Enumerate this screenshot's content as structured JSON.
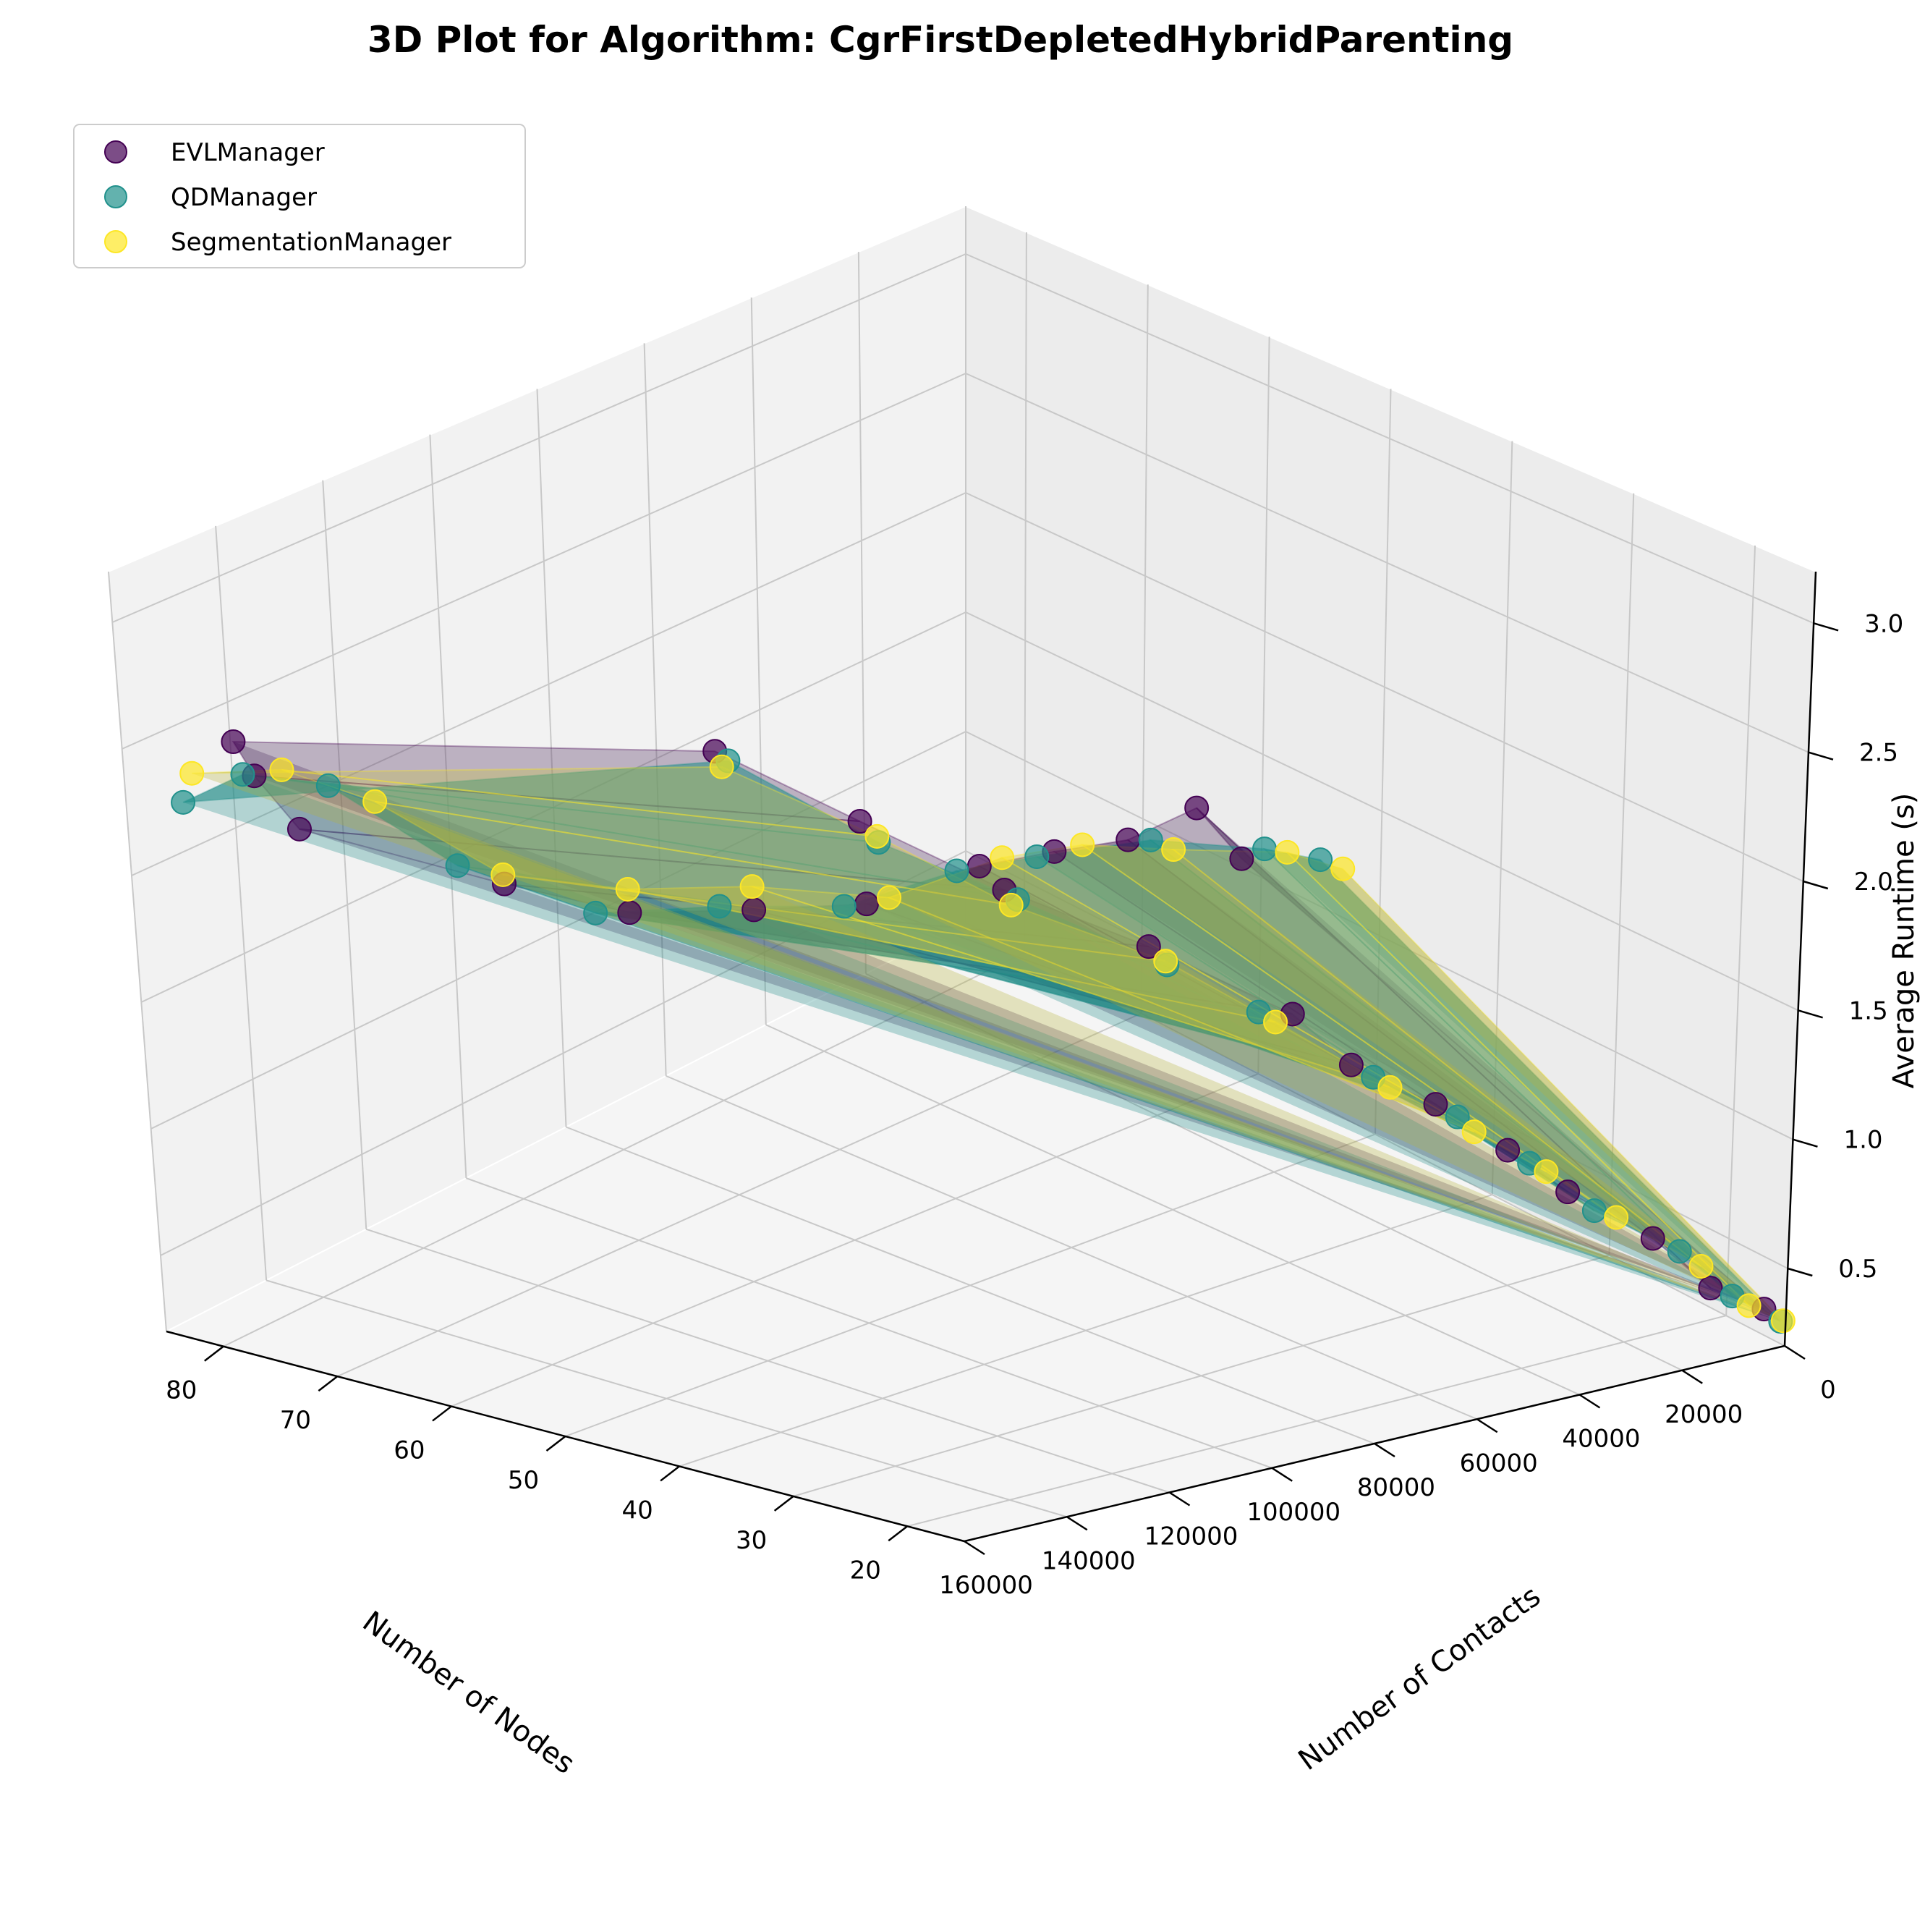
{
  "chart_data": {
    "type": "scatter",
    "title": "3D Plot for Algorithm: CgrFirstDepletedHybridParenting",
    "xlabel": "Number of Nodes",
    "ylabel": "Number of Contacts",
    "zlabel": "Average Runtime (s)",
    "xlim": [
      15,
      85
    ],
    "ylim": [
      0,
      160000
    ],
    "zlim": [
      0.2,
      3.2
    ],
    "x_ticks": [
      "80",
      "70",
      "60",
      "50",
      "40",
      "30",
      "20"
    ],
    "x_tick_values": [
      80,
      70,
      60,
      50,
      40,
      30,
      20
    ],
    "y_ticks": [
      "0",
      "20000",
      "40000",
      "60000",
      "80000",
      "100000",
      "120000",
      "140000",
      "160000"
    ],
    "y_tick_values": [
      0,
      20000,
      40000,
      60000,
      80000,
      100000,
      120000,
      140000,
      160000
    ],
    "z_ticks": [
      "0.5",
      "1.0",
      "1.5",
      "2.0",
      "2.5",
      "3.0"
    ],
    "z_tick_values": [
      0.5,
      1.0,
      1.5,
      2.0,
      2.5,
      3.0
    ],
    "grid": true,
    "legend_position": "top-left",
    "series": [
      {
        "name": "EVLManager",
        "color": "#440154",
        "points": [
          [
            80,
            150000,
            2.6
          ],
          [
            76,
            155000,
            2.65
          ],
          [
            70,
            160000,
            2.7
          ],
          [
            62,
            140000,
            2.5
          ],
          [
            56,
            130000,
            2.45
          ],
          [
            50,
            120000,
            2.55
          ],
          [
            45,
            110000,
            2.62
          ],
          [
            40,
            100000,
            2.85
          ],
          [
            36,
            95000,
            3.0
          ],
          [
            33,
            88000,
            3.05
          ],
          [
            30,
            82000,
            3.22
          ],
          [
            28,
            78000,
            2.95
          ],
          [
            80,
            60000,
            1.65
          ],
          [
            70,
            55000,
            1.55
          ],
          [
            60,
            50000,
            1.45
          ],
          [
            50,
            45000,
            1.4
          ],
          [
            40,
            40000,
            1.3
          ],
          [
            35,
            40000,
            1.2
          ],
          [
            30,
            35000,
            1.1
          ],
          [
            26,
            30000,
            0.95
          ],
          [
            23,
            25000,
            0.8
          ],
          [
            20,
            15000,
            0.6
          ],
          [
            18,
            8000,
            0.4
          ],
          [
            16,
            2000,
            0.33
          ]
        ]
      },
      {
        "name": "QDManager",
        "color": "#21918c",
        "points": [
          [
            80,
            160000,
            2.45
          ],
          [
            77,
            155000,
            2.62
          ],
          [
            72,
            150000,
            2.7
          ],
          [
            65,
            142000,
            2.5
          ],
          [
            58,
            132000,
            2.4
          ],
          [
            52,
            122000,
            2.52
          ],
          [
            46,
            112000,
            2.6
          ],
          [
            41,
            102000,
            2.82
          ],
          [
            37,
            96000,
            2.95
          ],
          [
            32,
            86000,
            3.05
          ],
          [
            27,
            76000,
            3.0
          ],
          [
            25,
            70000,
            2.9
          ],
          [
            78,
            62000,
            1.68
          ],
          [
            68,
            56000,
            1.52
          ],
          [
            58,
            52000,
            1.48
          ],
          [
            48,
            46000,
            1.38
          ],
          [
            42,
            42000,
            1.28
          ],
          [
            34,
            38000,
            1.15
          ],
          [
            29,
            33000,
            1.05
          ],
          [
            25,
            28000,
            0.9
          ],
          [
            22,
            22000,
            0.72
          ],
          [
            19,
            12000,
            0.55
          ],
          [
            17,
            6000,
            0.38
          ],
          [
            15,
            1000,
            0.3
          ]
        ]
      },
      {
        "name": "SegmentationManager",
        "color": "#fde725",
        "points": [
          [
            80,
            158000,
            2.55
          ],
          [
            75,
            152000,
            2.68
          ],
          [
            69,
            148000,
            2.72
          ],
          [
            63,
            138000,
            2.48
          ],
          [
            57,
            128000,
            2.5
          ],
          [
            51,
            118000,
            2.6
          ],
          [
            44,
            108000,
            2.66
          ],
          [
            39,
            98000,
            2.9
          ],
          [
            35,
            92000,
            3.02
          ],
          [
            31,
            84000,
            3.0
          ],
          [
            26,
            74000,
            2.98
          ],
          [
            24,
            68000,
            2.85
          ],
          [
            79,
            61000,
            1.62
          ],
          [
            69,
            54000,
            1.5
          ],
          [
            59,
            51000,
            1.42
          ],
          [
            49,
            44000,
            1.35
          ],
          [
            41,
            41000,
            1.25
          ],
          [
            33,
            37000,
            1.12
          ],
          [
            28,
            32000,
            1.0
          ],
          [
            24,
            27000,
            0.88
          ],
          [
            21,
            20000,
            0.7
          ],
          [
            18,
            10000,
            0.5
          ],
          [
            16,
            5000,
            0.36
          ],
          [
            15,
            500,
            0.3
          ]
        ]
      }
    ]
  }
}
